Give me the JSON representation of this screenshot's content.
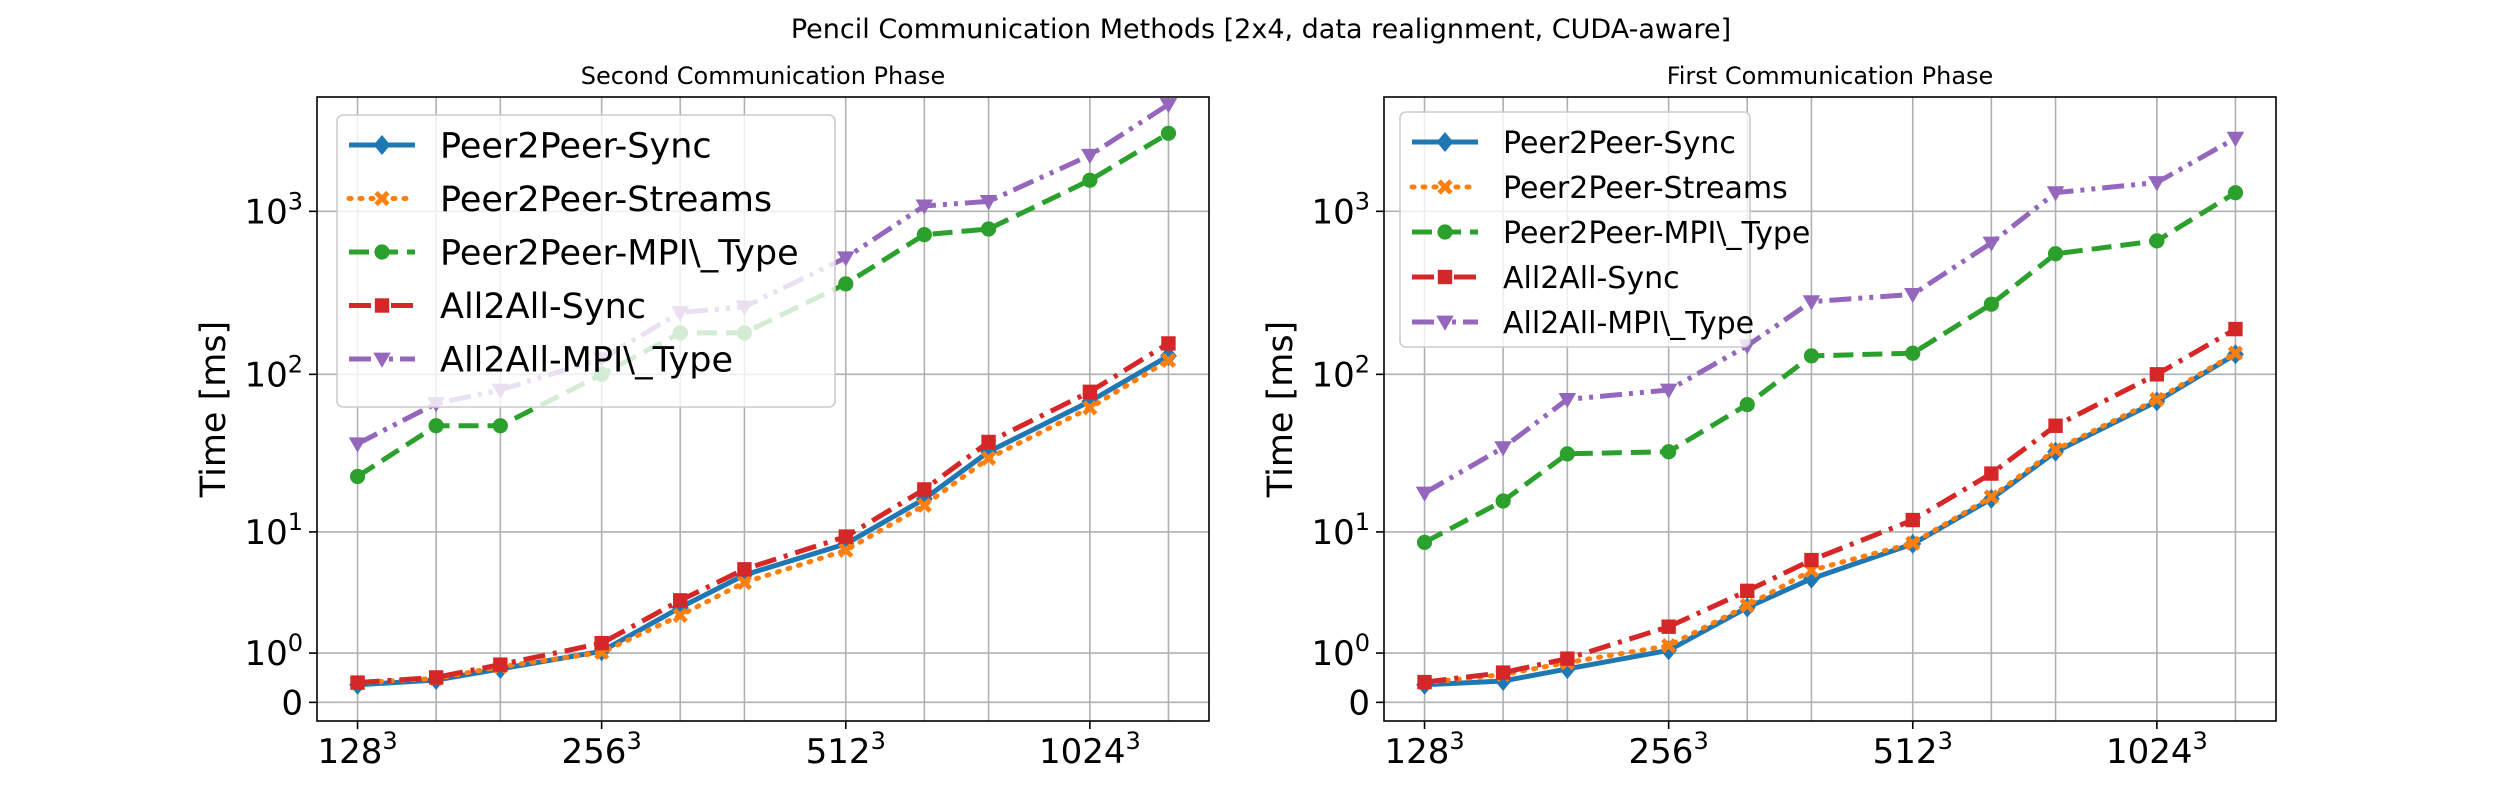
{
  "figure": {
    "suptitle": "Pencil Communication Methods [2x4, data realignment, CUDA-aware]"
  },
  "chart_data": [
    {
      "type": "line",
      "title": "Second Communication Phase",
      "xlabel": "",
      "ylabel": "Time [ms]",
      "yscale": "symlog",
      "ylim": [
        -0.3,
        5000
      ],
      "grid": true,
      "legend_location": "upper-left",
      "x": [
        128,
        160,
        192,
        256,
        320,
        384,
        512,
        640,
        768,
        1024,
        1280
      ],
      "xticks": [
        {
          "value": 128,
          "label": "128",
          "exp": "3"
        },
        {
          "value": 256,
          "label": "256",
          "exp": "3"
        },
        {
          "value": 512,
          "label": "512",
          "exp": "3"
        },
        {
          "value": 1024,
          "label": "1024",
          "exp": "3"
        }
      ],
      "yticks": [
        {
          "value": 0,
          "label": "0",
          "exp": ""
        },
        {
          "value": 1,
          "label": "10",
          "exp": "0"
        },
        {
          "value": 10,
          "label": "10",
          "exp": "1"
        },
        {
          "value": 100,
          "label": "10",
          "exp": "2"
        },
        {
          "value": 1000,
          "label": "10",
          "exp": "3"
        }
      ],
      "series": [
        {
          "name": "Peer2Peer-Sync",
          "color": "#1f77b4",
          "dash": "solid",
          "marker": "diamond",
          "values": [
            0.28,
            0.37,
            0.6,
            1.05,
            2.8,
            5,
            8.3,
            16.5,
            33,
            68,
            130
          ]
        },
        {
          "name": "Peer2Peer-Streams",
          "color": "#ff7f0e",
          "dash": "dotted",
          "marker": "x",
          "values": [
            0.32,
            0.4,
            0.65,
            1.02,
            2.4,
            4.4,
            7.5,
            15,
            30,
            62,
            122
          ]
        },
        {
          "name": "Peer2Peer-MPI\\_Type",
          "color": "#2ca02c",
          "dash": "dashed",
          "marker": "circle",
          "values": [
            23,
            48,
            48,
            100,
            180,
            180,
            360,
            720,
            780,
            1550,
            3000
          ]
        },
        {
          "name": "All2All-Sync",
          "color": "#d62728",
          "dash": "dashdot",
          "marker": "square",
          "values": [
            0.32,
            0.42,
            0.7,
            1.3,
            3.2,
            5.5,
            9.3,
            19,
            38,
            78,
            155
          ]
        },
        {
          "name": "All2All-MPI\\_Type",
          "color": "#9467bd",
          "dash": "dashdotdot",
          "marker": "triangle-down",
          "values": [
            37,
            66,
            80,
            125,
            240,
            260,
            520,
            1080,
            1150,
            2200,
            4500
          ]
        }
      ]
    },
    {
      "type": "line",
      "title": "First Communication Phase",
      "xlabel": "",
      "ylabel": "Time [ms]",
      "yscale": "symlog",
      "ylim": [
        -0.3,
        5000
      ],
      "grid": true,
      "legend_location": "upper-left",
      "x": [
        128,
        160,
        192,
        256,
        320,
        384,
        512,
        640,
        768,
        1024,
        1280
      ],
      "xticks": [
        {
          "value": 128,
          "label": "128",
          "exp": "3"
        },
        {
          "value": 256,
          "label": "256",
          "exp": "3"
        },
        {
          "value": 512,
          "label": "512",
          "exp": "3"
        },
        {
          "value": 1024,
          "label": "1024",
          "exp": "3"
        }
      ],
      "yticks": [
        {
          "value": 0,
          "label": "0",
          "exp": ""
        },
        {
          "value": 1,
          "label": "10",
          "exp": "0"
        },
        {
          "value": 10,
          "label": "10",
          "exp": "1"
        },
        {
          "value": 100,
          "label": "10",
          "exp": "2"
        },
        {
          "value": 1000,
          "label": "10",
          "exp": "3"
        }
      ],
      "series": [
        {
          "name": "Peer2Peer-Sync",
          "color": "#1f77b4",
          "dash": "solid",
          "marker": "diamond",
          "values": [
            0.28,
            0.35,
            0.6,
            1.08,
            2.8,
            4.7,
            8.3,
            16.5,
            33,
            68,
            133
          ]
        },
        {
          "name": "Peer2Peer-Streams",
          "color": "#ff7f0e",
          "dash": "dotted",
          "marker": "x",
          "values": [
            0.32,
            0.48,
            0.75,
            1.22,
            2.9,
            5.4,
            8.4,
            17,
            34,
            70,
            135
          ]
        },
        {
          "name": "Peer2Peer-MPI\\_Type",
          "color": "#2ca02c",
          "dash": "dashed",
          "marker": "circle",
          "values": [
            8.5,
            16,
            32,
            33,
            65,
            130,
            135,
            270,
            550,
            660,
            1300
          ]
        },
        {
          "name": "All2All-Sync",
          "color": "#d62728",
          "dash": "dashdot",
          "marker": "square",
          "values": [
            0.33,
            0.52,
            0.85,
            1.9,
            3.8,
            6.4,
            12,
            24,
            48,
            100,
            190
          ]
        },
        {
          "name": "All2All-MPI\\_Type",
          "color": "#9467bd",
          "dash": "dashdotdot",
          "marker": "triangle-down",
          "values": [
            18,
            35,
            70,
            80,
            150,
            280,
            310,
            640,
            1300,
            1500,
            2800
          ]
        }
      ]
    }
  ]
}
